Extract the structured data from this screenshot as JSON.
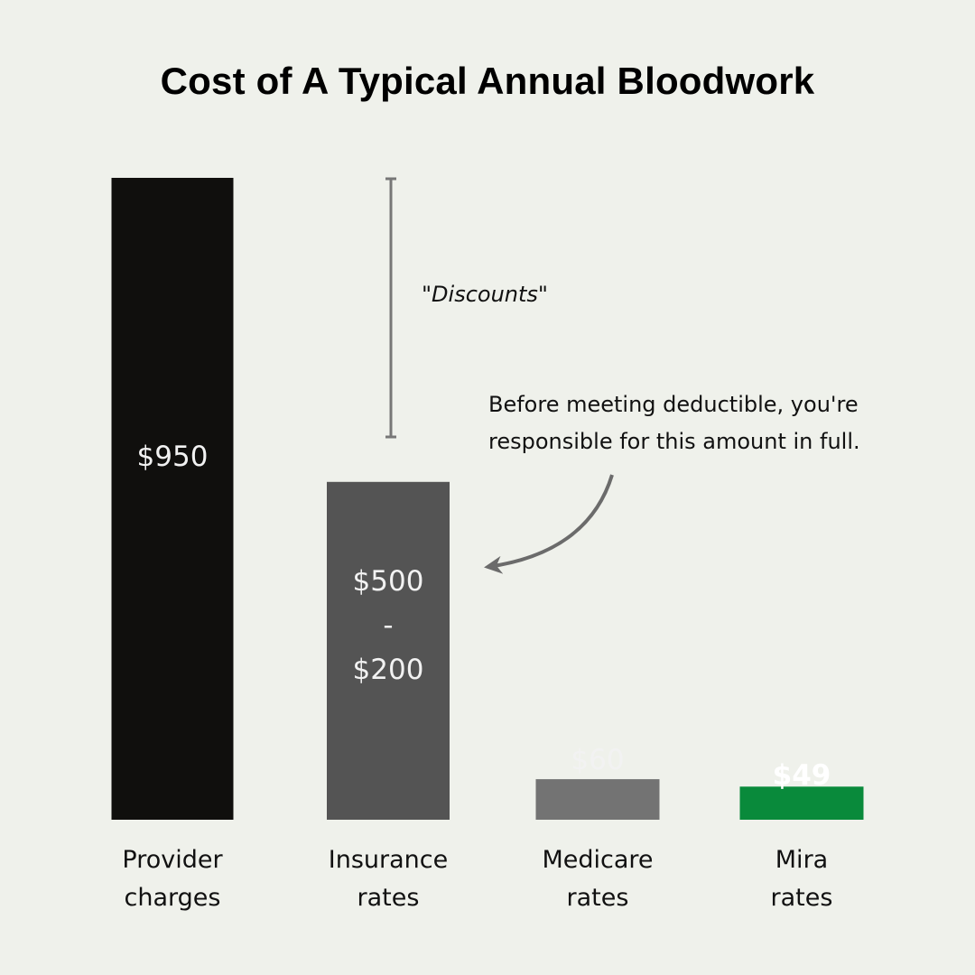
{
  "chart_data": {
    "type": "bar",
    "title": "Cost of A Typical Annual Bloodwork",
    "categories": [
      [
        "Provider",
        "charges"
      ],
      [
        "Insurance",
        "rates"
      ],
      [
        "Medicare",
        "rates"
      ],
      [
        "Mira",
        "rates"
      ]
    ],
    "values": [
      950,
      500,
      60,
      49
    ],
    "value_labels": [
      [
        "$950"
      ],
      [
        "$500",
        "-",
        "$200"
      ],
      [
        "$60"
      ],
      [
        "$49"
      ]
    ],
    "bar_colors": [
      "#100f0d",
      "#545454",
      "#737373",
      "#098a3b"
    ],
    "ylim": [
      0,
      950
    ],
    "grid": false,
    "annotations": {
      "discount_label": "\"Discounts\"",
      "deductible_note": [
        "Before meeting deductible, you're",
        "responsible for this amount in full."
      ]
    }
  }
}
